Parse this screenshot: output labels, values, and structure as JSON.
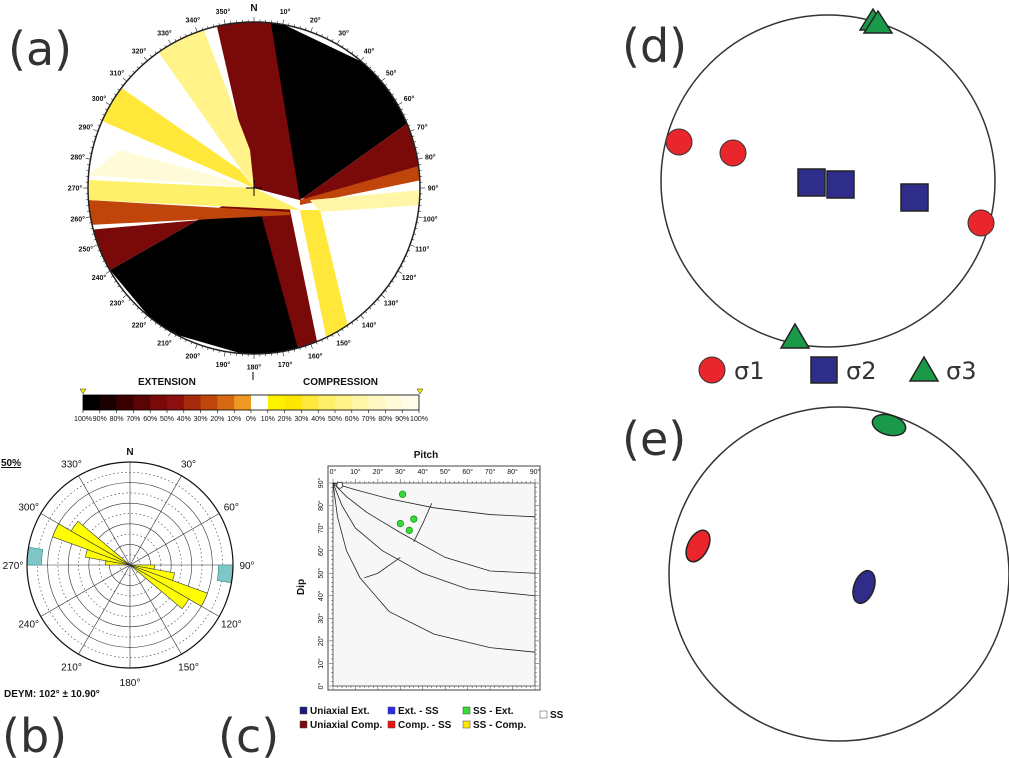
{
  "panel_labels": {
    "a": "(a)",
    "b": "(b)",
    "c": "(c)",
    "d": "(d)",
    "e": "(e)"
  },
  "panel_a": {
    "north": "N",
    "azimuth_labels": [
      "10°",
      "20°",
      "30°",
      "40°",
      "50°",
      "60°",
      "70°",
      "80°",
      "90°",
      "100°",
      "110°",
      "120°",
      "130°",
      "140°",
      "150°",
      "160°",
      "170°",
      "180°",
      "190°",
      "200°",
      "210°",
      "220°",
      "230°",
      "240°",
      "250°",
      "260°",
      "270°",
      "280°",
      "290°",
      "300°",
      "310°",
      "320°",
      "330°",
      "340°",
      "350°"
    ],
    "colorbar": {
      "extension_label": "EXTENSION",
      "compression_label": "COMPRESSION",
      "ticks": [
        "100%",
        "90%",
        "80%",
        "70%",
        "60%",
        "50%",
        "40%",
        "30%",
        "20%",
        "10%",
        "0%",
        "10%",
        "20%",
        "30%",
        "40%",
        "50%",
        "60%",
        "70%",
        "80%",
        "90%",
        "100%"
      ],
      "colors": [
        "#000000",
        "#1a0000",
        "#3a0000",
        "#5a0505",
        "#7a0a0a",
        "#8c1010",
        "#a52a0a",
        "#c0450a",
        "#d66a12",
        "#ee9a22",
        "#ffffff",
        "#fff200",
        "#ffe600",
        "#ffe83a",
        "#fff06a",
        "#fff38a",
        "#fff6a8",
        "#fff8c4",
        "#fffbd8",
        "#fffde8"
      ]
    }
  },
  "panel_b": {
    "north": "N",
    "scale_label": "50%",
    "direction_labels": [
      "30°",
      "60°",
      "90°",
      "120°",
      "150°",
      "180°",
      "210°",
      "240°",
      "270°",
      "300°",
      "330°"
    ],
    "caption": "DEYM: 102° ± 10.90°",
    "chart_data": {
      "type": "rose",
      "bin_width_deg": 10,
      "bins": [
        {
          "azimuth_range": [
            90,
            100
          ],
          "value": 0.12
        },
        {
          "azimuth_range": [
            100,
            110
          ],
          "value": 0.22
        },
        {
          "azimuth_range": [
            110,
            120
          ],
          "value": 0.4
        },
        {
          "azimuth_range": [
            120,
            130
          ],
          "value": 0.33
        },
        {
          "azimuth_range": [
            270,
            280
          ],
          "value": 0.12
        },
        {
          "azimuth_range": [
            280,
            290
          ],
          "value": 0.22
        },
        {
          "azimuth_range": [
            290,
            300
          ],
          "value": 0.4
        },
        {
          "azimuth_range": [
            300,
            310
          ],
          "value": 0.33
        }
      ]
    }
  },
  "panel_c": {
    "chart_data": {
      "type": "scatter",
      "title": "Pitch",
      "xlabel": "",
      "ylabel": "Dip",
      "x_ticks": [
        "0°",
        "10°",
        "20°",
        "30°",
        "40°",
        "50°",
        "60°",
        "70°",
        "80°",
        "90°"
      ],
      "y_ticks": [
        "0°",
        "10°",
        "20°",
        "30°",
        "40°",
        "50°",
        "60°",
        "70°",
        "80°",
        "90°"
      ],
      "xlim": [
        0,
        90
      ],
      "ylim": [
        0,
        90
      ],
      "points": [
        {
          "x": 31,
          "y": 85
        },
        {
          "x": 30,
          "y": 72
        },
        {
          "x": 36,
          "y": 74
        },
        {
          "x": 34,
          "y": 69
        }
      ],
      "point_color": "#33dd33"
    },
    "legend": [
      {
        "label": "Uniaxial Ext.",
        "color": "#1a1a80"
      },
      {
        "label": "Ext. - SS",
        "color": "#2a2aee"
      },
      {
        "label": "SS - Ext.",
        "color": "#33dd33"
      },
      {
        "label": "SS",
        "color": "#ffffff"
      },
      {
        "label": "Uniaxial Comp.",
        "color": "#7a0a0a"
      },
      {
        "label": "Comp. - SS",
        "color": "#ee1111"
      },
      {
        "label": "SS - Comp.",
        "color": "#ffe600"
      }
    ]
  },
  "panel_d": {
    "legend": [
      {
        "label": "σ1",
        "color": "#e8262c",
        "shape": "circle"
      },
      {
        "label": "σ2",
        "color": "#2e2e8a",
        "shape": "square"
      },
      {
        "label": "σ3",
        "color": "#1a9a48",
        "shape": "triangle"
      }
    ],
    "sigma1_color": "#e8262c",
    "sigma2_color": "#2e2e8a",
    "sigma3_color": "#1a9a48"
  },
  "panel_e": {
    "sigma1_color": "#e8262c",
    "sigma2_color": "#2e2e8a",
    "sigma3_color": "#1a9a48"
  }
}
